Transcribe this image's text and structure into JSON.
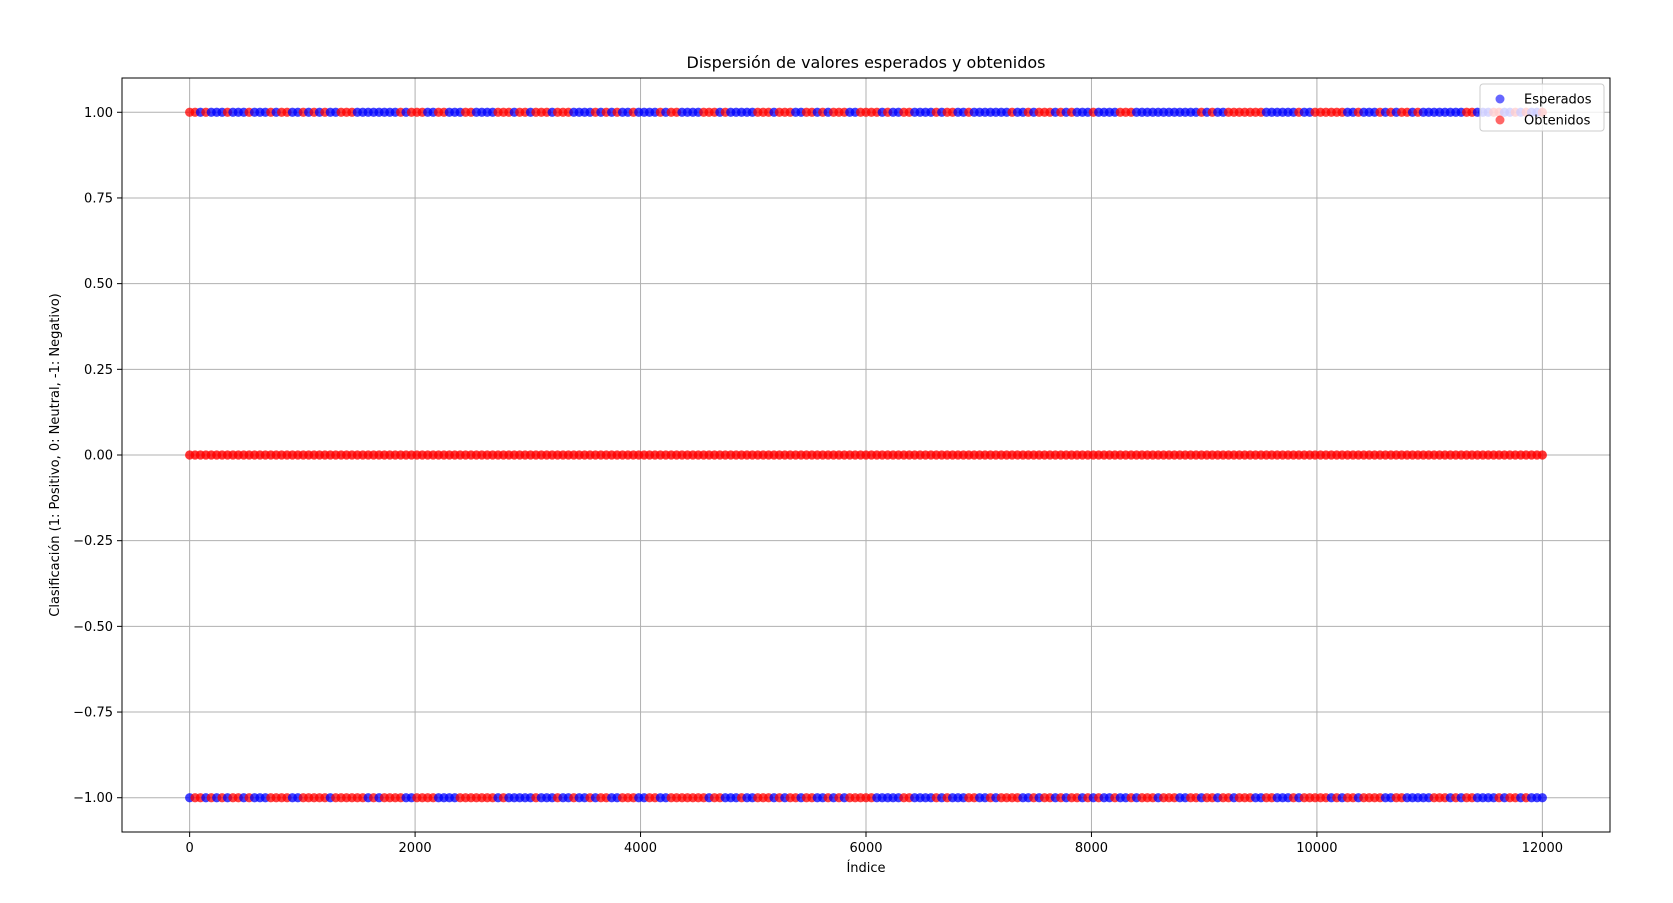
{
  "chart_data": {
    "type": "scatter",
    "title": "Dispersión de valores esperados y obtenidos",
    "xlabel": "Índice",
    "ylabel": "Clasificación (1: Positivo, 0: Neutral, -1: Negativo)",
    "xlim": [
      -600,
      12600
    ],
    "ylim": [
      -1.1,
      1.1
    ],
    "x_ticks": [
      0,
      2000,
      4000,
      6000,
      8000,
      10000,
      12000
    ],
    "x_tick_labels": [
      "0",
      "2000",
      "4000",
      "6000",
      "8000",
      "10000",
      "12000"
    ],
    "y_ticks": [
      1.0,
      0.75,
      0.5,
      0.25,
      0.0,
      -0.25,
      -0.5,
      -0.75,
      -1.0
    ],
    "y_tick_labels": [
      "1.00",
      "0.75",
      "0.50",
      "0.25",
      "0.00",
      "−0.25",
      "−0.50",
      "−0.75",
      "−1.00"
    ],
    "grid": true,
    "legend_position": "top-right",
    "x_range": [
      0,
      12000
    ],
    "class_values": [
      1,
      0,
      -1
    ],
    "series": [
      {
        "name": "Esperados",
        "color": "#0000ff",
        "alpha": 0.6
      },
      {
        "name": "Obtenidos",
        "color": "#ff0000",
        "alpha": 0.6
      }
    ]
  }
}
